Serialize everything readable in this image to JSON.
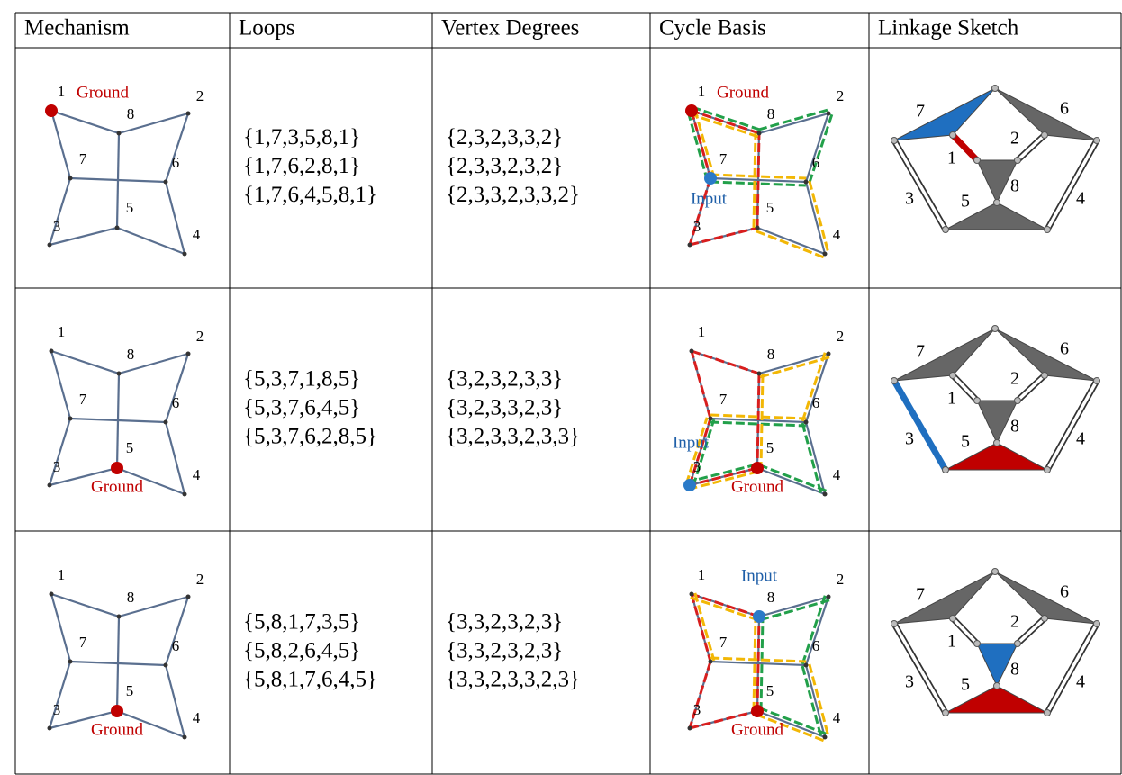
{
  "header": [
    "Mechanism",
    "Loops",
    "Vertex Degrees",
    "Cycle Basis",
    "Linkage Sketch"
  ],
  "node_labels": [
    "1",
    "2",
    "3",
    "4",
    "5",
    "6",
    "7",
    "8"
  ],
  "rows": [
    {
      "loops": [
        "{1,7,3,5,8,1}",
        "{1,7,6,2,8,1}",
        "{1,7,6,4,5,8,1}"
      ],
      "degrees": [
        "{2,3,2,3,3,2}",
        "{2,3,3,2,3,2}",
        "{2,3,3,2,3,3,2}"
      ],
      "ground": "Ground",
      "input": "Input"
    },
    {
      "loops": [
        "{5,3,7,1,8,5}",
        "{5,3,7,6,4,5}",
        "{5,3,7,6,2,8,5}"
      ],
      "degrees": [
        "{3,2,3,2,3,3}",
        "{3,2,3,3,2,3}",
        "{3,2,3,3,2,3,3}"
      ],
      "ground": "Ground",
      "input": "Input"
    },
    {
      "loops": [
        "{5,8,1,7,3,5}",
        "{5,8,2,6,4,5}",
        "{5,8,1,7,6,4,5}"
      ],
      "degrees": [
        "{3,3,2,3,2,3}",
        "{3,3,2,3,2,3}",
        "{3,3,2,3,3,2,3}"
      ],
      "ground": "Ground",
      "input": "Input"
    }
  ]
}
